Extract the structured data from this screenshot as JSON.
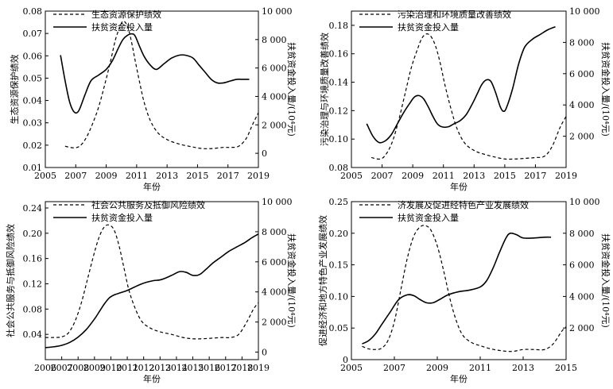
{
  "chart_data": [
    {
      "type": "line",
      "xlabel": "年份",
      "ylabel": "生态资源保护绩效",
      "y2label": "扶贫资金投入量/(10⁴元)",
      "xlim": [
        2005,
        2019
      ],
      "xticks": [
        2005,
        2007,
        2009,
        2011,
        2013,
        2015,
        2017,
        2019
      ],
      "ylim": [
        0.01,
        0.08
      ],
      "yticks": [
        0.01,
        0.02,
        0.03,
        0.04,
        0.05,
        0.06,
        0.07,
        0.08
      ],
      "ytick_labels": [
        "0.01",
        "0.02",
        "0.03",
        "0.04",
        "0.05",
        "0.06",
        "0.07",
        "0.08"
      ],
      "y2lim": [
        -1000,
        10000
      ],
      "y2ticks": [
        0,
        2000,
        4000,
        6000,
        8000,
        10000
      ],
      "y2tick_labels": [
        "0",
        "2 000",
        "4 000",
        "6 000",
        "8 000",
        "10 000"
      ],
      "legend_position": "top-left",
      "series": [
        {
          "name": "生态资源保护绩效",
          "style": "dashed",
          "axis": "left",
          "x": [
            2006.3,
            2006.9,
            2007.3,
            2007.7,
            2008.1,
            2008.5,
            2008.9,
            2009.3,
            2009.6,
            2009.9,
            2010.1,
            2010.3,
            2010.5,
            2010.7,
            2010.9,
            2011.2,
            2011.5,
            2011.9,
            2012.4,
            2013.0,
            2013.8,
            2014.6,
            2015.3,
            2016.0,
            2016.7,
            2017.2,
            2017.7,
            2018.2,
            2018.6,
            2019.0
          ],
          "y": [
            0.0195,
            0.0188,
            0.0198,
            0.0235,
            0.0295,
            0.037,
            0.047,
            0.058,
            0.067,
            0.073,
            0.0755,
            0.0745,
            0.071,
            0.065,
            0.058,
            0.048,
            0.039,
            0.031,
            0.0255,
            0.0225,
            0.0205,
            0.0193,
            0.0185,
            0.0185,
            0.019,
            0.019,
            0.0195,
            0.023,
            0.029,
            0.0345
          ]
        },
        {
          "name": "扶贫资金投入量",
          "style": "solid",
          "axis": "right",
          "x": [
            2006.0,
            2006.3,
            2006.6,
            2006.9,
            2007.2,
            2007.6,
            2008.0,
            2008.5,
            2009.0,
            2009.4,
            2009.8,
            2010.1,
            2010.4,
            2010.7,
            2010.9,
            2011.2,
            2011.5,
            2011.9,
            2012.3,
            2012.8,
            2013.3,
            2013.8,
            2014.2,
            2014.7,
            2015.1,
            2015.5,
            2015.9,
            2016.3,
            2016.7,
            2017.2,
            2017.6,
            2018.0,
            2018.4
          ],
          "y": [
            6900,
            5100,
            3600,
            2900,
            3000,
            4100,
            5100,
            5500,
            5900,
            6500,
            7400,
            8000,
            8300,
            8400,
            8250,
            7500,
            6800,
            6200,
            5900,
            6300,
            6700,
            6900,
            6900,
            6700,
            6200,
            5700,
            5200,
            4950,
            4950,
            5100,
            5200,
            5200,
            5200
          ]
        }
      ]
    },
    {
      "type": "line",
      "xlabel": "年份",
      "ylabel": "污染治理与环境质量改善绩效",
      "y2label": "扶贫资金投入量/(10⁴元)",
      "xlim": [
        2005,
        2019
      ],
      "xticks": [
        2005,
        2007,
        2009,
        2011,
        2013,
        2015,
        2017,
        2019
      ],
      "ylim": [
        0.08,
        0.19
      ],
      "yticks": [
        0.08,
        0.1,
        0.12,
        0.14,
        0.16,
        0.18
      ],
      "ytick_labels": [
        "0.08",
        "0.10",
        "0.12",
        "0.14",
        "0.16",
        "0.18"
      ],
      "y2lim": [
        0,
        10000
      ],
      "y2ticks": [
        2000,
        4000,
        6000,
        8000,
        10000
      ],
      "y2tick_labels": [
        "2 000",
        "4 000",
        "6 000",
        "8 000",
        "10 000"
      ],
      "legend_position": "top-left",
      "series": [
        {
          "name": "污染治理和环境质量改善绩效",
          "style": "dashed",
          "axis": "left",
          "x": [
            2006.3,
            2006.9,
            2007.3,
            2007.7,
            2008.1,
            2008.5,
            2008.9,
            2009.3,
            2009.6,
            2009.9,
            2010.2,
            2010.5,
            2010.8,
            2011.1,
            2011.5,
            2011.9,
            2012.4,
            2013.0,
            2013.6,
            2014.3,
            2015.0,
            2015.7,
            2016.4,
            2017.0,
            2017.6,
            2018.1,
            2018.6,
            2019.0
          ],
          "y": [
            0.087,
            0.086,
            0.09,
            0.099,
            0.114,
            0.132,
            0.15,
            0.163,
            0.171,
            0.174,
            0.172,
            0.165,
            0.153,
            0.138,
            0.121,
            0.107,
            0.097,
            0.092,
            0.0895,
            0.0875,
            0.086,
            0.086,
            0.0865,
            0.087,
            0.088,
            0.095,
            0.108,
            0.116
          ]
        },
        {
          "name": "扶贫资金投入量",
          "style": "solid",
          "axis": "right",
          "x": [
            2006.0,
            2006.4,
            2006.8,
            2007.2,
            2007.6,
            2008.0,
            2008.4,
            2008.8,
            2009.1,
            2009.4,
            2009.7,
            2010.0,
            2010.3,
            2010.6,
            2010.9,
            2011.3,
            2011.7,
            2012.1,
            2012.5,
            2012.9,
            2013.2,
            2013.5,
            2013.8,
            2014.1,
            2014.4,
            2014.7,
            2014.9,
            2015.1,
            2015.5,
            2015.9,
            2016.3,
            2016.8,
            2017.3,
            2017.8,
            2018.3
          ],
          "y": [
            2800,
            2000,
            1600,
            1700,
            2100,
            2800,
            3500,
            4100,
            4500,
            4600,
            4400,
            3900,
            3300,
            2800,
            2600,
            2600,
            2800,
            3000,
            3400,
            4100,
            4700,
            5300,
            5600,
            5500,
            4800,
            3900,
            3600,
            3800,
            5000,
            6600,
            7700,
            8200,
            8500,
            8800,
            9000
          ]
        }
      ]
    },
    {
      "type": "line",
      "xlabel": "年份",
      "ylabel": "社会公共服务与抵御风险绩效",
      "y2label": "扶贫资金投入量/(10⁴元)",
      "xlim": [
        2006,
        2019
      ],
      "xticks": [
        2006,
        2007,
        2008,
        2009,
        2010,
        2011,
        2012,
        2013,
        2014,
        2015,
        2016,
        2017,
        2018,
        2019
      ],
      "ylim": [
        0.0,
        0.25
      ],
      "yticks": [
        0.04,
        0.08,
        0.12,
        0.16,
        0.2,
        0.24
      ],
      "ytick_labels": [
        "0.04",
        "0.08",
        "0.12",
        "0.16",
        "0.20",
        "0.24"
      ],
      "y2lim": [
        -500,
        10000
      ],
      "y2ticks": [
        0,
        2000,
        4000,
        6000,
        8000,
        10000
      ],
      "y2tick_labels": [
        "0",
        "2 000",
        "4 000",
        "6 000",
        "8 000",
        "10 000"
      ],
      "legend_position": "top-left",
      "series": [
        {
          "name": "社会公共服务及抵御风险绩效",
          "style": "dashed",
          "axis": "left",
          "x": [
            2006.0,
            2006.5,
            2007.0,
            2007.4,
            2007.8,
            2008.2,
            2008.6,
            2009.0,
            2009.3,
            2009.6,
            2009.9,
            2010.2,
            2010.5,
            2010.8,
            2011.1,
            2011.5,
            2011.9,
            2012.4,
            2013.0,
            2013.7,
            2014.4,
            2015.0,
            2015.6,
            2016.2,
            2016.8,
            2017.3,
            2017.8,
            2018.3,
            2018.7,
            2019.0
          ],
          "y": [
            0.035,
            0.035,
            0.036,
            0.042,
            0.06,
            0.09,
            0.13,
            0.17,
            0.195,
            0.21,
            0.213,
            0.205,
            0.18,
            0.145,
            0.11,
            0.08,
            0.06,
            0.05,
            0.044,
            0.04,
            0.035,
            0.033,
            0.033,
            0.034,
            0.035,
            0.035,
            0.04,
            0.06,
            0.08,
            0.09
          ]
        },
        {
          "name": "扶贫资金投入量",
          "style": "solid",
          "axis": "right",
          "x": [
            2006.0,
            2006.5,
            2007.0,
            2007.5,
            2008.0,
            2008.5,
            2009.0,
            2009.3,
            2009.6,
            2009.9,
            2010.2,
            2010.6,
            2011.0,
            2011.4,
            2011.8,
            2012.2,
            2012.6,
            2013.0,
            2013.4,
            2013.8,
            2014.2,
            2014.6,
            2015.0,
            2015.4,
            2015.8,
            2016.2,
            2016.7,
            2017.2,
            2017.7,
            2018.2,
            2018.6,
            2019.0
          ],
          "y": [
            300,
            350,
            450,
            650,
            1000,
            1500,
            2200,
            2700,
            3200,
            3600,
            3800,
            3950,
            4100,
            4300,
            4500,
            4650,
            4750,
            4800,
            4950,
            5150,
            5350,
            5300,
            5100,
            5150,
            5500,
            5900,
            6300,
            6700,
            7000,
            7300,
            7600,
            7850
          ]
        }
      ]
    },
    {
      "type": "line",
      "xlabel": "年份",
      "ylabel": "促进经济和地方特色产业发展绩效",
      "y2label": "扶贫资金投入量/(10⁴元)",
      "xlim": [
        2005,
        2015
      ],
      "xticks": [
        2005,
        2007,
        2009,
        2011,
        2013,
        2015
      ],
      "ylim": [
        0.0,
        0.25
      ],
      "yticks": [
        0.0,
        0.05,
        0.1,
        0.15,
        0.2,
        0.25
      ],
      "ytick_labels": [
        "0",
        "0.05",
        "0.10",
        "0.15",
        "0.20",
        "0.25"
      ],
      "y2lim": [
        0,
        10000
      ],
      "y2ticks": [
        2000,
        4000,
        6000,
        8000,
        10000
      ],
      "y2tick_labels": [
        "2 000",
        "4 000",
        "6 000",
        "8 000",
        "10 000"
      ],
      "legend_position": "top-left",
      "series": [
        {
          "name": "济发展及促进经特色产业发展绩效",
          "style": "dashed",
          "axis": "left",
          "x": [
            2005.5,
            2005.8,
            2006.1,
            2006.4,
            2006.7,
            2007.0,
            2007.3,
            2007.6,
            2007.9,
            2008.2,
            2008.45,
            2008.7,
            2009.0,
            2009.3,
            2009.6,
            2009.9,
            2010.2,
            2010.6,
            2011.0,
            2011.5,
            2012.0,
            2012.5,
            2013.0,
            2013.5,
            2014.0,
            2014.4,
            2014.8,
            2015.0
          ],
          "y": [
            0.021,
            0.017,
            0.016,
            0.018,
            0.03,
            0.06,
            0.11,
            0.16,
            0.195,
            0.21,
            0.212,
            0.205,
            0.18,
            0.14,
            0.095,
            0.06,
            0.038,
            0.027,
            0.022,
            0.017,
            0.014,
            0.013,
            0.016,
            0.016,
            0.016,
            0.025,
            0.045,
            0.052
          ]
        },
        {
          "name": "扶贫资金投入量",
          "style": "solid",
          "axis": "right",
          "x": [
            2005.5,
            2005.8,
            2006.1,
            2006.4,
            2006.8,
            2007.2,
            2007.6,
            2007.9,
            2008.2,
            2008.5,
            2008.8,
            2009.1,
            2009.5,
            2010.0,
            2010.5,
            2011.0,
            2011.3,
            2011.6,
            2011.9,
            2012.2,
            2012.4,
            2012.7,
            2013.0,
            2013.5,
            2014.0,
            2014.3
          ],
          "y": [
            1000,
            1200,
            1600,
            2200,
            3000,
            3800,
            4100,
            4050,
            3800,
            3600,
            3600,
            3800,
            4100,
            4300,
            4400,
            4600,
            5000,
            5800,
            6800,
            7700,
            8000,
            7900,
            7700,
            7700,
            7750,
            7750
          ]
        }
      ]
    }
  ]
}
